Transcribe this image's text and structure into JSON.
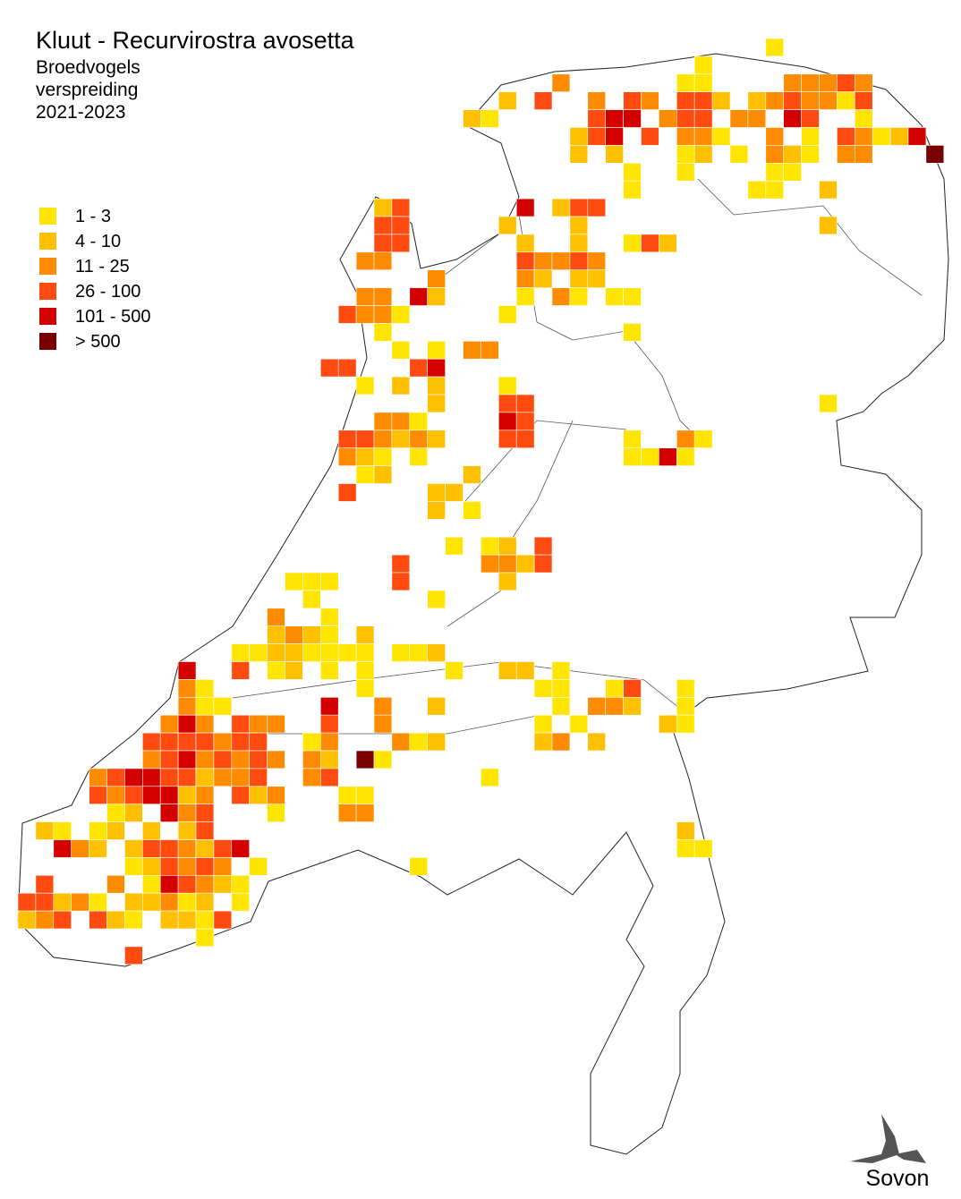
{
  "header": {
    "title": "Kluut - Recurvirostra avosetta",
    "subtitle": [
      "Broedvogels",
      "verspreiding",
      "2021-2023"
    ]
  },
  "legend": [
    {
      "label": "1 - 3",
      "color": "#ffe500"
    },
    {
      "label": "4 - 10",
      "color": "#ffc000"
    },
    {
      "label": "11 - 25",
      "color": "#ff8c00"
    },
    {
      "label": "26 - 100",
      "color": "#ff4a10"
    },
    {
      "label": "101 - 500",
      "color": "#d40000"
    },
    {
      "label": "> 500",
      "color": "#7a0000"
    }
  ],
  "logo": "Sovon"
}
